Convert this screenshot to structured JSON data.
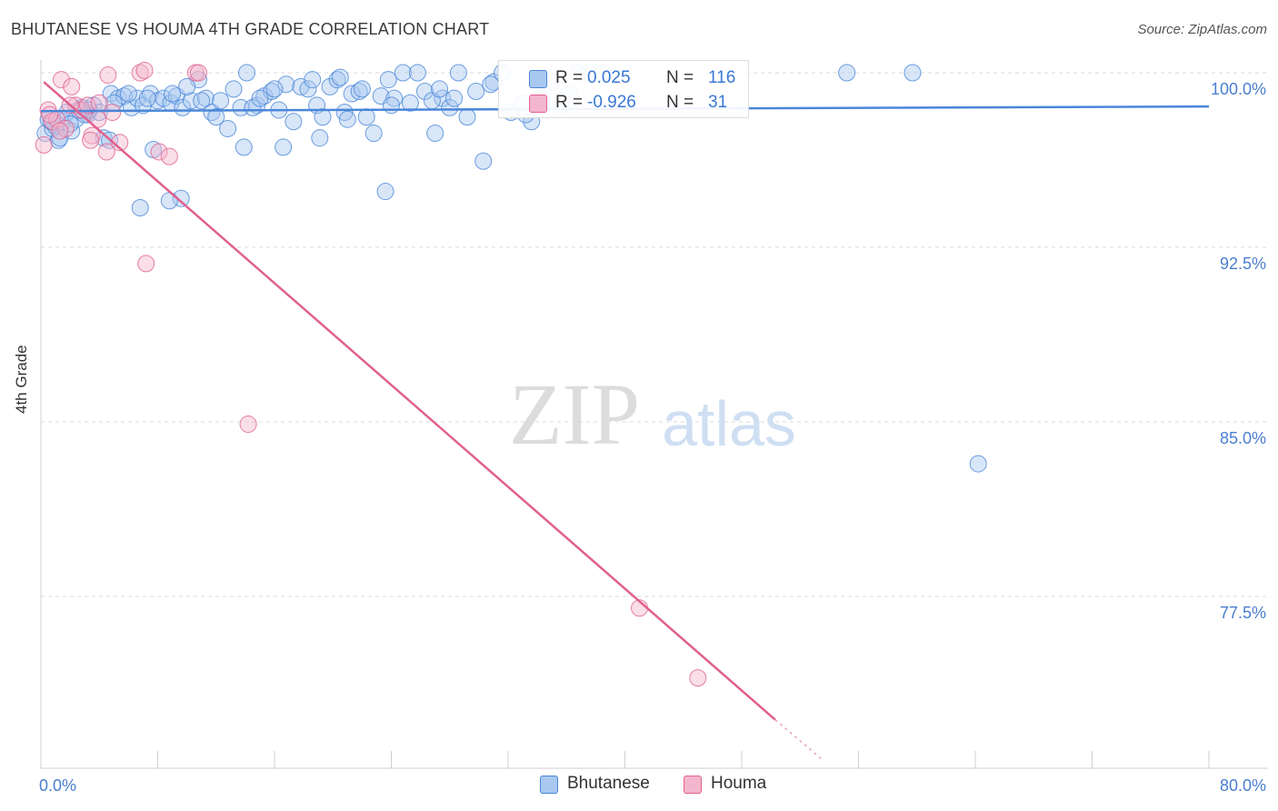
{
  "header": {
    "title": "BHUTANESE VS HOUMA 4TH GRADE CORRELATION CHART",
    "source": "Source: ZipAtlas.com"
  },
  "colors": {
    "blue": "#4a86d8",
    "blue_fill": "#a9c8f0",
    "pink": "#e0608f",
    "pink_fill": "#f3b6cc",
    "tick_label": "#4a7ecf"
  },
  "legend": {
    "r_label": "R =",
    "n_label": "N =",
    "rows": [
      {
        "r": "0.025",
        "n": "116"
      },
      {
        "r": "-0.926",
        "n": "31"
      }
    ]
  },
  "chart_data": {
    "type": "scatter",
    "ylabel": "4th Grade",
    "xlim": [
      0,
      80
    ],
    "ylim": [
      71,
      101
    ],
    "y_ticks": [
      100,
      92.5,
      85,
      77.5
    ],
    "y_tick_labels": [
      "100.0%",
      "92.5%",
      "85.0%",
      "77.5%"
    ],
    "x_tick_labels": [
      "0.0%",
      "80.0%"
    ],
    "grid": true,
    "legend_placement": "top-center",
    "series": [
      {
        "name": "Bhutanese",
        "color": "#4a86d8",
        "trend": {
          "x": [
            0,
            80
          ],
          "y": [
            98.35,
            98.55
          ]
        },
        "points": [
          [
            0.3,
            97.4
          ],
          [
            0.8,
            97.6
          ],
          [
            1.2,
            97.1
          ],
          [
            1.5,
            97.9
          ],
          [
            1.8,
            98.3
          ],
          [
            2.1,
            97.5
          ],
          [
            2.4,
            98.0
          ],
          [
            2.8,
            98.5
          ],
          [
            3.2,
            98.2
          ],
          [
            3.6,
            98.6
          ],
          [
            4.0,
            98.3
          ],
          [
            4.3,
            97.2
          ],
          [
            4.8,
            99.1
          ],
          [
            5.3,
            98.9
          ],
          [
            5.7,
            99.0
          ],
          [
            6.2,
            98.5
          ],
          [
            6.6,
            98.9
          ],
          [
            7.0,
            98.6
          ],
          [
            7.5,
            99.1
          ],
          [
            8.0,
            98.8
          ],
          [
            8.4,
            98.9
          ],
          [
            8.9,
            98.7
          ],
          [
            9.3,
            99.0
          ],
          [
            9.7,
            98.5
          ],
          [
            10.3,
            98.8
          ],
          [
            10.8,
            99.7
          ],
          [
            11.3,
            98.9
          ],
          [
            11.7,
            98.3
          ],
          [
            12.3,
            98.8
          ],
          [
            12.8,
            97.6
          ],
          [
            13.2,
            99.3
          ],
          [
            13.7,
            98.5
          ],
          [
            14.1,
            100.0
          ],
          [
            14.8,
            98.6
          ],
          [
            15.3,
            99.0
          ],
          [
            15.8,
            99.2
          ],
          [
            16.3,
            98.4
          ],
          [
            16.8,
            99.5
          ],
          [
            17.3,
            97.9
          ],
          [
            17.8,
            99.4
          ],
          [
            18.3,
            99.3
          ],
          [
            18.9,
            98.6
          ],
          [
            19.3,
            98.1
          ],
          [
            19.8,
            99.4
          ],
          [
            20.3,
            99.7
          ],
          [
            20.8,
            98.3
          ],
          [
            21.3,
            99.1
          ],
          [
            21.8,
            99.2
          ],
          [
            22.3,
            98.1
          ],
          [
            22.8,
            97.4
          ],
          [
            23.3,
            99.0
          ],
          [
            23.8,
            99.7
          ],
          [
            24.2,
            98.9
          ],
          [
            24.8,
            100.0
          ],
          [
            25.3,
            98.7
          ],
          [
            25.8,
            100.0
          ],
          [
            26.3,
            99.2
          ],
          [
            27.0,
            97.4
          ],
          [
            27.5,
            98.9
          ],
          [
            28.0,
            98.5
          ],
          [
            28.6,
            100.0
          ],
          [
            29.2,
            98.1
          ],
          [
            29.8,
            99.2
          ],
          [
            30.3,
            96.2
          ],
          [
            31.0,
            99.6
          ],
          [
            31.6,
            100.0
          ],
          [
            32.2,
            98.3
          ],
          [
            33.0,
            98.7
          ],
          [
            33.6,
            97.9
          ],
          [
            34.3,
            98.9
          ],
          [
            35.0,
            99.6
          ],
          [
            35.6,
            98.6
          ],
          [
            36.2,
            99.1
          ],
          [
            36.8,
            100.0
          ],
          [
            37.5,
            100.0
          ],
          [
            38.5,
            100.0
          ],
          [
            6.8,
            94.2
          ],
          [
            7.7,
            96.7
          ],
          [
            9.6,
            94.6
          ],
          [
            8.8,
            94.5
          ],
          [
            13.9,
            96.8
          ],
          [
            16.6,
            96.8
          ],
          [
            19.1,
            97.2
          ],
          [
            23.6,
            94.9
          ],
          [
            4.7,
            97.1
          ],
          [
            3.3,
            98.4
          ],
          [
            1.0,
            97.7
          ],
          [
            0.5,
            98.0
          ],
          [
            2.0,
            97.8
          ],
          [
            5.0,
            98.7
          ],
          [
            55.2,
            100.0
          ],
          [
            59.7,
            100.0
          ],
          [
            64.2,
            83.2
          ],
          [
            16.0,
            99.3
          ],
          [
            21.0,
            98.0
          ],
          [
            10.0,
            99.4
          ],
          [
            7.3,
            98.9
          ],
          [
            18.6,
            99.7
          ],
          [
            14.5,
            98.5
          ],
          [
            26.8,
            98.8
          ],
          [
            12.0,
            98.1
          ],
          [
            9.0,
            99.1
          ],
          [
            20.5,
            99.8
          ],
          [
            24.0,
            98.6
          ],
          [
            28.3,
            98.9
          ],
          [
            3.0,
            98.2
          ],
          [
            1.3,
            97.2
          ],
          [
            0.7,
            97.9
          ],
          [
            6.0,
            99.1
          ],
          [
            15.0,
            98.9
          ],
          [
            11.0,
            98.8
          ],
          [
            22.0,
            99.3
          ],
          [
            27.3,
            99.3
          ],
          [
            30.8,
            99.5
          ],
          [
            33.2,
            98.2
          ],
          [
            2.6,
            98.4
          ]
        ]
      },
      {
        "name": "Houma",
        "color": "#e0608f",
        "trend": {
          "x": [
            0.2,
            50.3
          ],
          "y": [
            99.6,
            72.2
          ],
          "dash_to": {
            "x": 53.5,
            "y": 70.5
          }
        },
        "points": [
          [
            0.2,
            96.9
          ],
          [
            0.5,
            98.4
          ],
          [
            0.8,
            97.9
          ],
          [
            1.1,
            98.0
          ],
          [
            1.4,
            99.7
          ],
          [
            1.7,
            97.6
          ],
          [
            2.1,
            99.4
          ],
          [
            2.4,
            98.6
          ],
          [
            2.8,
            98.4
          ],
          [
            3.2,
            98.6
          ],
          [
            3.5,
            97.3
          ],
          [
            4.0,
            98.7
          ],
          [
            4.5,
            96.6
          ],
          [
            4.9,
            98.3
          ],
          [
            5.4,
            97.0
          ],
          [
            6.8,
            100.0
          ],
          [
            7.1,
            100.1
          ],
          [
            8.1,
            96.6
          ],
          [
            8.8,
            96.4
          ],
          [
            10.6,
            100.0
          ],
          [
            10.8,
            100.0
          ],
          [
            4.6,
            99.9
          ],
          [
            3.4,
            97.1
          ],
          [
            2.0,
            98.6
          ],
          [
            1.3,
            97.5
          ],
          [
            7.2,
            91.8
          ],
          [
            14.2,
            84.9
          ],
          [
            41.0,
            77.0
          ],
          [
            45.0,
            74.0
          ],
          [
            0.6,
            98.2
          ],
          [
            3.9,
            98.0
          ]
        ]
      }
    ]
  }
}
